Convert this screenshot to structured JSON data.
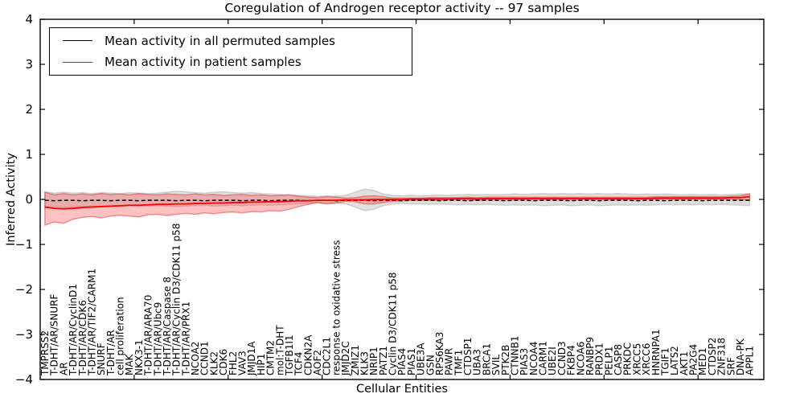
{
  "figure": {
    "background": "#ffffff",
    "frame_color": "#000000"
  },
  "chart_data": {
    "type": "line",
    "title": "Coregulation of Androgen receptor activity -- 97 samples",
    "xlabel": "Cellular Entities",
    "ylabel": "Inferred Activity",
    "ylim": [
      -4,
      4
    ],
    "grid": false,
    "legend_position": "upper left",
    "yticks": [
      {
        "value": 4,
        "label": "4"
      },
      {
        "value": 3,
        "label": "3"
      },
      {
        "value": 2,
        "label": "2"
      },
      {
        "value": 1,
        "label": "1"
      },
      {
        "value": 0,
        "label": "0"
      },
      {
        "value": -1,
        "label": "−1"
      },
      {
        "value": -2,
        "label": "−2"
      },
      {
        "value": -3,
        "label": "−3"
      },
      {
        "value": -4,
        "label": "−4"
      }
    ],
    "xticks_at": [
      10,
      20,
      30,
      40,
      50,
      60,
      70
    ],
    "categories": [
      "TMPRSS2",
      "T-DHT/AR/SNURF",
      "AR",
      "T-DHT/AR/CyclinD1",
      "T-DHT/AR/CDK6",
      "T-DHT/AR/TIF2/CARM1",
      "SNURF",
      "T-DHT/AR",
      "cell proliferation",
      "MAK",
      "NKX3-1",
      "T-DHT/AR/ARA70",
      "T-DHT/AR/Ubc9",
      "T-DHT/AR/Caspase 8",
      "T-DHT/AR/Cyclin D3/CDK11 p58",
      "T-DHT/AR/PRX1",
      "NCOA2",
      "CCND1",
      "KLK2",
      "CDK6",
      "FHL2",
      "VAV3",
      "JMJD1A",
      "HIP1",
      "CMTM2",
      "mol:T-DHT",
      "TGFB1I1",
      "TCF4",
      "CDKN2A",
      "AOF2",
      "CDC2L1",
      "response to oxidative stress",
      "JMJD2C",
      "ZMIZ1",
      "KLK3",
      "NRIP1",
      "PATZ1",
      "Cyclin D3/CDK11 p58",
      "PIAS4",
      "PIAS1",
      "UBE3A",
      "GSN",
      "RPS6KA3",
      "PAWR",
      "TMF1",
      "CTDSP1",
      "UBA3",
      "BRCA1",
      "SVIL",
      "PTK2B",
      "CTNNB1",
      "PIAS3",
      "NCOA4",
      "CARM1",
      "UBE2I",
      "CCND3",
      "FKBP4",
      "NCOA6",
      "RANBP9",
      "PRDX1",
      "PELP1",
      "CASP8",
      "PRKDC",
      "XRCC5",
      "XRCC6",
      "HNRNPA1",
      "TGIF1",
      "LATS2",
      "AKT1",
      "PA2G4",
      "MED1",
      "CTDSP2",
      "ZNF318",
      "SRF",
      "DNA-PK",
      "APPL1"
    ],
    "series": [
      {
        "name": "Mean activity in all permuted samples",
        "color": "#000000",
        "dash": "5,3",
        "width": 1.5,
        "values": [
          -0.02,
          -0.03,
          -0.02,
          -0.02,
          -0.03,
          -0.02,
          -0.02,
          -0.03,
          -0.02,
          -0.02,
          -0.03,
          -0.02,
          -0.02,
          -0.02,
          -0.03,
          -0.02,
          -0.02,
          -0.03,
          -0.02,
          -0.02,
          -0.02,
          -0.03,
          -0.02,
          -0.02,
          -0.03,
          -0.02,
          -0.02,
          -0.02,
          -0.03,
          -0.02,
          -0.02,
          -0.03,
          -0.02,
          -0.02,
          -0.02,
          -0.03,
          -0.02,
          -0.02,
          -0.03,
          -0.02,
          -0.02,
          -0.02,
          -0.03,
          -0.02,
          -0.02,
          -0.03,
          -0.02,
          -0.02,
          -0.02,
          -0.03,
          -0.02,
          -0.02,
          -0.03,
          -0.02,
          -0.02,
          -0.02,
          -0.03,
          -0.02,
          -0.02,
          -0.03,
          -0.02,
          -0.02,
          -0.02,
          -0.03,
          -0.02,
          -0.02,
          -0.03,
          -0.02,
          -0.02,
          -0.02,
          -0.03,
          -0.02,
          -0.02,
          -0.02,
          -0.02,
          -0.02
        ],
        "band": {
          "fill": "rgba(130,130,130,0.25)",
          "edge": "rgba(130,130,130,0.30)",
          "hi": [
            0.17,
            0.14,
            0.16,
            0.14,
            0.15,
            0.13,
            0.15,
            0.14,
            0.13,
            0.15,
            0.14,
            0.13,
            0.14,
            0.16,
            0.18,
            0.17,
            0.15,
            0.14,
            0.16,
            0.17,
            0.15,
            0.14,
            0.15,
            0.13,
            0.12,
            0.11,
            0.1,
            0.09,
            0.08,
            0.07,
            0.08,
            0.07,
            0.09,
            0.16,
            0.23,
            0.2,
            0.12,
            0.09,
            0.08,
            0.09,
            0.08,
            0.09,
            0.1,
            0.09,
            0.1,
            0.11,
            0.1,
            0.11,
            0.1,
            0.11,
            0.12,
            0.11,
            0.12,
            0.13,
            0.12,
            0.13,
            0.12,
            0.13,
            0.12,
            0.13,
            0.12,
            0.13,
            0.12,
            0.11,
            0.12,
            0.11,
            0.12,
            0.11,
            0.1,
            0.11,
            0.1,
            0.11,
            0.1,
            0.11,
            0.12,
            0.13
          ],
          "lo": [
            -0.19,
            -0.16,
            -0.18,
            -0.17,
            -0.16,
            -0.15,
            -0.17,
            -0.15,
            -0.16,
            -0.14,
            -0.16,
            -0.15,
            -0.14,
            -0.15,
            -0.16,
            -0.15,
            -0.14,
            -0.13,
            -0.15,
            -0.14,
            -0.13,
            -0.14,
            -0.13,
            -0.12,
            -0.13,
            -0.12,
            -0.11,
            -0.1,
            -0.09,
            -0.08,
            -0.09,
            -0.08,
            -0.1,
            -0.17,
            -0.25,
            -0.22,
            -0.14,
            -0.1,
            -0.09,
            -0.1,
            -0.1,
            -0.11,
            -0.1,
            -0.11,
            -0.12,
            -0.11,
            -0.12,
            -0.11,
            -0.12,
            -0.13,
            -0.12,
            -0.13,
            -0.12,
            -0.14,
            -0.13,
            -0.12,
            -0.14,
            -0.13,
            -0.12,
            -0.14,
            -0.13,
            -0.12,
            -0.13,
            -0.12,
            -0.13,
            -0.12,
            -0.11,
            -0.12,
            -0.11,
            -0.12,
            -0.11,
            -0.12,
            -0.11,
            -0.12,
            -0.13,
            -0.14
          ]
        }
      },
      {
        "name": "Mean activity in patient samples",
        "color": "#ff0000",
        "dash": null,
        "width": 1.8,
        "values": [
          -0.17,
          -0.2,
          -0.21,
          -0.2,
          -0.18,
          -0.17,
          -0.16,
          -0.15,
          -0.14,
          -0.13,
          -0.13,
          -0.12,
          -0.11,
          -0.11,
          -0.1,
          -0.1,
          -0.09,
          -0.09,
          -0.08,
          -0.08,
          -0.07,
          -0.07,
          -0.06,
          -0.06,
          -0.05,
          -0.05,
          -0.04,
          -0.03,
          -0.03,
          -0.02,
          -0.02,
          -0.02,
          -0.01,
          -0.01,
          -0.01,
          0.0,
          0.0,
          0.0,
          0.0,
          0.01,
          0.01,
          0.01,
          0.01,
          0.01,
          0.02,
          0.02,
          0.01,
          0.02,
          0.02,
          0.02,
          0.02,
          0.02,
          0.02,
          0.02,
          0.02,
          0.02,
          0.02,
          0.02,
          0.02,
          0.02,
          0.02,
          0.02,
          0.02,
          0.02,
          0.02,
          0.03,
          0.03,
          0.03,
          0.03,
          0.03,
          0.03,
          0.03,
          0.03,
          0.04,
          0.04,
          0.06
        ],
        "band": {
          "fill": "rgba(255,50,50,0.30)",
          "edge": "rgba(225,40,40,0.45)",
          "hi": [
            0.16,
            0.1,
            0.13,
            0.1,
            0.12,
            0.1,
            0.13,
            0.11,
            0.12,
            0.1,
            0.13,
            0.11,
            0.1,
            0.12,
            0.11,
            0.1,
            0.12,
            0.1,
            0.11,
            0.09,
            0.1,
            0.11,
            0.09,
            0.1,
            0.08,
            0.09,
            0.1,
            0.07,
            0.05,
            0.04,
            0.06,
            0.05,
            0.03,
            0.04,
            0.07,
            0.08,
            0.06,
            0.03,
            0.03,
            0.03,
            0.03,
            0.04,
            0.04,
            0.04,
            0.04,
            0.05,
            0.04,
            0.05,
            0.05,
            0.05,
            0.05,
            0.05,
            0.05,
            0.05,
            0.05,
            0.05,
            0.05,
            0.05,
            0.05,
            0.05,
            0.05,
            0.05,
            0.05,
            0.05,
            0.05,
            0.06,
            0.06,
            0.06,
            0.06,
            0.06,
            0.06,
            0.06,
            0.06,
            0.07,
            0.08,
            0.12
          ],
          "lo": [
            -0.57,
            -0.5,
            -0.53,
            -0.44,
            -0.4,
            -0.38,
            -0.41,
            -0.37,
            -0.35,
            -0.37,
            -0.39,
            -0.34,
            -0.33,
            -0.36,
            -0.33,
            -0.31,
            -0.33,
            -0.3,
            -0.32,
            -0.29,
            -0.28,
            -0.3,
            -0.27,
            -0.28,
            -0.25,
            -0.26,
            -0.22,
            -0.16,
            -0.11,
            -0.07,
            -0.1,
            -0.08,
            -0.04,
            -0.05,
            -0.1,
            -0.1,
            -0.07,
            -0.04,
            -0.03,
            -0.02,
            -0.02,
            -0.02,
            -0.02,
            -0.01,
            -0.01,
            -0.01,
            -0.02,
            -0.01,
            -0.01,
            -0.01,
            -0.01,
            -0.01,
            -0.01,
            -0.01,
            -0.01,
            -0.01,
            -0.01,
            -0.01,
            -0.01,
            -0.01,
            -0.01,
            -0.01,
            -0.01,
            -0.01,
            0.0,
            0.0,
            0.0,
            0.0,
            0.0,
            0.0,
            0.0,
            0.0,
            0.0,
            0.01,
            0.0,
            -0.02
          ]
        }
      }
    ]
  }
}
